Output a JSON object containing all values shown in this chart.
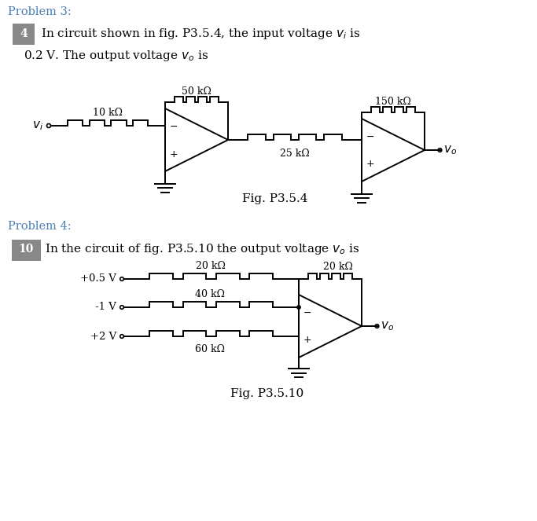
{
  "bg_color": "#ffffff",
  "text_color": "#000000",
  "link_color": "#4a7eb5",
  "problem3_label": "Problem 3:",
  "problem4_label": "Problem 4:",
  "p3_fig_label": "Fig. P3.5.4",
  "p4_fig_label": "Fig. P3.5.10",
  "p3_resistors": [
    "50 kΩ",
    "10 kΩ",
    "25 kΩ",
    "150 kΩ"
  ],
  "p4_resistors": [
    "20 kΩ",
    "40 kΩ",
    "60 kΩ",
    "20 kΩ"
  ],
  "p4_sources": [
    "+0.5 V",
    "-1 V",
    "+2 V"
  ],
  "num3_text": "4",
  "num4_text": "10"
}
